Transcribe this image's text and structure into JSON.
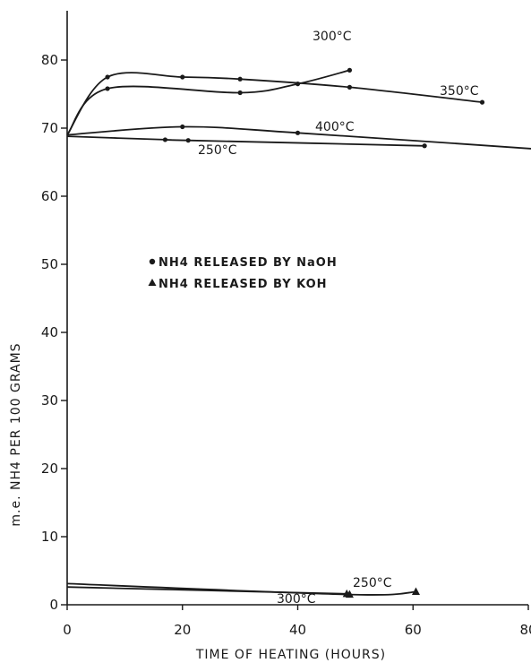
{
  "chart_data": {
    "type": "line",
    "xlabel": "TIME OF HEATING (HOURS)",
    "ylabel": "m.e. NH4 PER 100 GRAMS",
    "xlim": [
      0,
      80
    ],
    "ylim": [
      0,
      86
    ],
    "x_ticks": [
      0,
      20,
      40,
      60,
      80
    ],
    "y_ticks": [
      0,
      10,
      20,
      30,
      40,
      50,
      60,
      70,
      80
    ],
    "grid": false,
    "legend": {
      "placement": "center-left",
      "entries": [
        {
          "marker": "circle",
          "label": "NH4 RELEASED BY NaOH"
        },
        {
          "marker": "triangle",
          "label": "NH4 RELEASED BY KOH"
        }
      ]
    },
    "series": [
      {
        "name": "300°C",
        "marker": "circle",
        "x": [
          0,
          7,
          30,
          40,
          49
        ],
        "y": [
          69,
          75.8,
          75.2,
          76.5,
          78.5
        ]
      },
      {
        "name": "350°C",
        "marker": "circle",
        "x": [
          0,
          7,
          20,
          30,
          49,
          72
        ],
        "y": [
          69,
          77.5,
          77.5,
          77.2,
          76,
          73.8
        ]
      },
      {
        "name": "400°C",
        "marker": "circle",
        "x": [
          0,
          20,
          40,
          82
        ],
        "y": [
          69,
          70.2,
          69.3,
          66.9
        ]
      },
      {
        "name": "250°C",
        "marker": "circle",
        "x": [
          0,
          17,
          21,
          62
        ],
        "y": [
          68.8,
          68.3,
          68.2,
          67.4
        ]
      },
      {
        "name": "250°C",
        "marker": "triangle",
        "x": [
          0,
          49,
          60.5
        ],
        "y": [
          3.1,
          1.5,
          1.9
        ]
      },
      {
        "name": "300°C",
        "marker": "triangle",
        "x": [
          0,
          48.5
        ],
        "y": [
          2.6,
          1.6
        ]
      }
    ]
  }
}
